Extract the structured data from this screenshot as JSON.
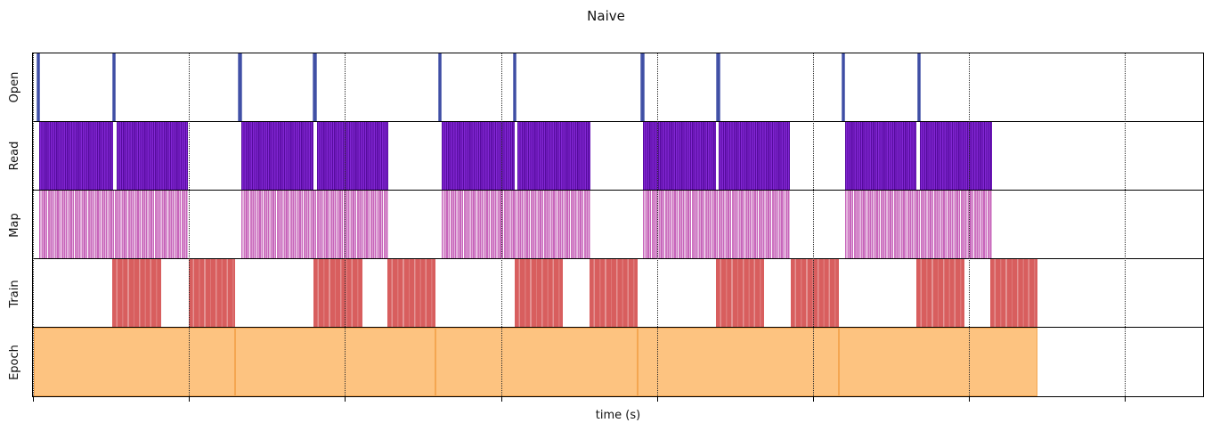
{
  "title": "Naive",
  "xlabel": "time (s)",
  "colors": {
    "open_line": "#4150a6",
    "read_fill": "#7a1fc4",
    "read_stripe": "#560b9e",
    "map_fill": "#c765bb",
    "train_fill": "#d85e5e",
    "train_stripe": "#e49393",
    "epoch_fill": "#fdc380",
    "epoch_edge": "#f4a651",
    "gridline": "#2a2a2a",
    "axis": "#000000"
  },
  "chart_data": {
    "type": "timeline",
    "title": "Naive",
    "xlabel": "time (s)",
    "x_axis": {
      "tick_labels": [],
      "tick_positions_pct": [
        0,
        13.33,
        26.67,
        40.0,
        53.33,
        66.67,
        80.0,
        93.33
      ],
      "gridlines": "dotted"
    },
    "tracks": [
      {
        "label": "Open",
        "style": "event-lines",
        "css": "open",
        "item_name": "open-event-line",
        "color": "#4150a6",
        "events_pct": [
          0.45,
          6.91,
          17.69,
          24.07,
          34.78,
          41.15,
          52.09,
          58.54,
          69.25,
          75.7
        ]
      },
      {
        "label": "Read",
        "style": "striped-blocks",
        "css": "read",
        "item_name": "read-block",
        "color": "#7a1fc4",
        "blocks_pct": [
          [
            0.55,
            6.83
          ],
          [
            7.14,
            13.21
          ],
          [
            17.84,
            23.99
          ],
          [
            24.3,
            30.37
          ],
          [
            34.93,
            41.15
          ],
          [
            41.38,
            47.61
          ],
          [
            52.16,
            58.39
          ],
          [
            58.62,
            64.69
          ],
          [
            69.4,
            75.47
          ],
          [
            75.78,
            81.93
          ]
        ]
      },
      {
        "label": "Map",
        "style": "striped-blocks",
        "css": "map",
        "item_name": "map-block",
        "color": "#c765bb",
        "blocks_pct": [
          [
            0.55,
            13.21
          ],
          [
            17.84,
            30.37
          ],
          [
            34.93,
            47.61
          ],
          [
            52.16,
            64.69
          ],
          [
            69.4,
            81.93
          ]
        ]
      },
      {
        "label": "Train",
        "style": "striped-blocks",
        "css": "train",
        "item_name": "train-block",
        "color": "#d85e5e",
        "blocks_pct": [
          [
            6.76,
            10.93
          ],
          [
            13.29,
            17.24
          ],
          [
            23.99,
            28.17
          ],
          [
            30.3,
            34.4
          ],
          [
            41.15,
            45.26
          ],
          [
            47.53,
            51.71
          ],
          [
            58.39,
            62.49
          ],
          [
            64.77,
            68.87
          ],
          [
            75.47,
            79.57
          ],
          [
            81.78,
            85.88
          ]
        ]
      },
      {
        "label": "Epoch",
        "style": "solid-blocks",
        "css": "epoch",
        "item_name": "epoch-block",
        "color": "#fdc380",
        "blocks_pct": [
          [
            0.08,
            17.24
          ],
          [
            17.24,
            34.4
          ],
          [
            34.4,
            51.71
          ],
          [
            51.71,
            68.87
          ],
          [
            68.87,
            85.88
          ]
        ]
      }
    ]
  }
}
